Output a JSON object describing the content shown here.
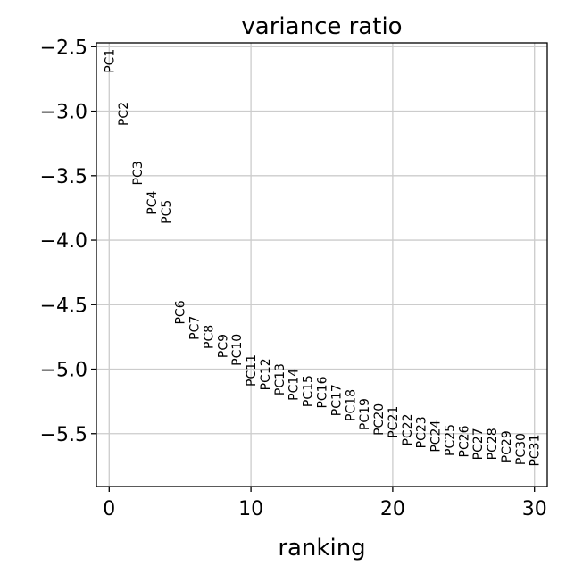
{
  "chart_data": {
    "type": "scatter",
    "title": "variance ratio",
    "xlabel": "ranking",
    "ylabel": "",
    "xlim": [
      -0.9,
      30.9
    ],
    "ylim": [
      -5.91,
      -2.47
    ],
    "xticks": [
      0,
      10,
      20,
      30
    ],
    "yticks": [
      -2.5,
      -3.0,
      -3.5,
      -4.0,
      -4.5,
      -5.0,
      -5.5
    ],
    "grid": true,
    "legend": "none",
    "colors": {
      "grid": "#cccccc",
      "axis": "#000000",
      "text": "#000000"
    },
    "points": [
      {
        "label": "PC1",
        "x": 0,
        "y": -2.61
      },
      {
        "label": "PC2",
        "x": 1,
        "y": -3.02
      },
      {
        "label": "PC3",
        "x": 2,
        "y": -3.48
      },
      {
        "label": "PC4",
        "x": 3,
        "y": -3.71
      },
      {
        "label": "PC5",
        "x": 4,
        "y": -3.78
      },
      {
        "label": "PC6",
        "x": 5,
        "y": -4.56
      },
      {
        "label": "PC7",
        "x": 6,
        "y": -4.68
      },
      {
        "label": "PC8",
        "x": 7,
        "y": -4.75
      },
      {
        "label": "PC9",
        "x": 8,
        "y": -4.82
      },
      {
        "label": "PC10",
        "x": 9,
        "y": -4.85
      },
      {
        "label": "PC11",
        "x": 10,
        "y": -5.01
      },
      {
        "label": "PC12",
        "x": 11,
        "y": -5.04
      },
      {
        "label": "PC13",
        "x": 12,
        "y": -5.08
      },
      {
        "label": "PC14",
        "x": 13,
        "y": -5.12
      },
      {
        "label": "PC15",
        "x": 14,
        "y": -5.17
      },
      {
        "label": "PC16",
        "x": 15,
        "y": -5.18
      },
      {
        "label": "PC17",
        "x": 16,
        "y": -5.24
      },
      {
        "label": "PC18",
        "x": 17,
        "y": -5.28
      },
      {
        "label": "PC19",
        "x": 18,
        "y": -5.35
      },
      {
        "label": "PC20",
        "x": 19,
        "y": -5.39
      },
      {
        "label": "PC21",
        "x": 20,
        "y": -5.41
      },
      {
        "label": "PC22",
        "x": 21,
        "y": -5.47
      },
      {
        "label": "PC23",
        "x": 22,
        "y": -5.49
      },
      {
        "label": "PC24",
        "x": 23,
        "y": -5.52
      },
      {
        "label": "PC25",
        "x": 24,
        "y": -5.55
      },
      {
        "label": "PC26",
        "x": 25,
        "y": -5.56
      },
      {
        "label": "PC27",
        "x": 26,
        "y": -5.58
      },
      {
        "label": "PC28",
        "x": 27,
        "y": -5.58
      },
      {
        "label": "PC29",
        "x": 28,
        "y": -5.6
      },
      {
        "label": "PC30",
        "x": 29,
        "y": -5.62
      },
      {
        "label": "PC31",
        "x": 30,
        "y": -5.63
      }
    ]
  }
}
